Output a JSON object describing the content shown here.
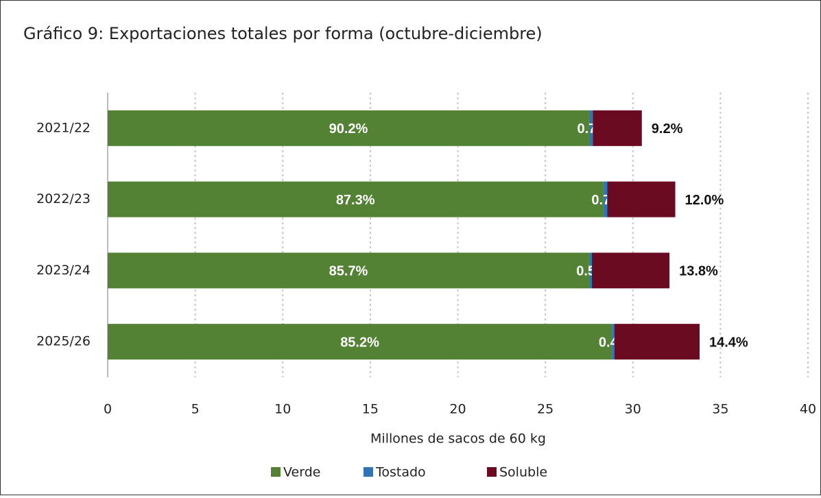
{
  "chart_data": {
    "type": "stacked_barh",
    "title": "Gráfico 9: Exportaciones totales por forma (octubre-diciembre)",
    "x_label": "Millones de sacos de 60 kg",
    "categories": [
      "2021/22",
      "2022/23",
      "2023/24",
      "2025/26"
    ],
    "series": [
      {
        "name": "Verde",
        "color": "#548235",
        "values": [
          27.5,
          28.3,
          27.5,
          28.8
        ],
        "share_labels": [
          "90.2%",
          "87.3%",
          "85.7%",
          "85.2%"
        ]
      },
      {
        "name": "Tostado",
        "color": "#2e75b6",
        "values": [
          0.21,
          0.23,
          0.16,
          0.14
        ],
        "share_labels": [
          "0.7%",
          "0.7%",
          "0.5%",
          "0.4%"
        ]
      },
      {
        "name": "Soluble",
        "color": "#6b0b22",
        "values": [
          2.8,
          3.89,
          4.43,
          4.87
        ],
        "share_labels": [
          "9.2%",
          "12.0%",
          "13.8%",
          "14.4%"
        ]
      }
    ],
    "xlim": [
      0,
      40
    ],
    "xticks": [
      0,
      5,
      10,
      15,
      20,
      25,
      30,
      35,
      40
    ],
    "grid": true,
    "legend": "bottom"
  }
}
